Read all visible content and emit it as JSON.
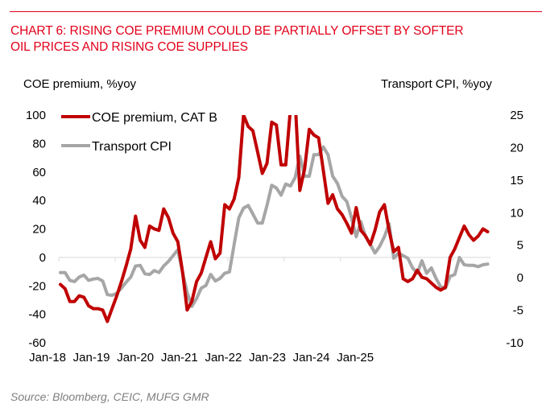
{
  "header": {
    "title_line1": "CHART 6: RISING COE PREMIUM COULD BE PARTIALLY OFFSET BY SOFTER",
    "title_line2": "OIL PRICES AND RISING COE SUPPLIES",
    "accent_color": "#e2001a"
  },
  "footer": {
    "source": "Source: Bloomberg, CEIC, MUFG GMR"
  },
  "chart_data": {
    "type": "line",
    "title": "CHART 6: RISING COE PREMIUM COULD BE PARTIALLY OFFSET BY SOFTER OIL PRICES AND RISING COE SUPPLIES",
    "xlabel": "",
    "ylabel_left": "COE premium, %yoy",
    "ylabel_right": "Transport CPI, %yoy",
    "x_start": "Jan-18",
    "x_frequency": "monthly",
    "x_tick_labels": [
      "Jan-18",
      "Jan-19",
      "Jan-20",
      "Jan-21",
      "Jan-22",
      "Jan-23",
      "Jan-24",
      "Jan-25"
    ],
    "y_left": {
      "lim": [
        -60,
        100
      ],
      "ticks": [
        100,
        80,
        60,
        40,
        20,
        0,
        -20,
        -40,
        -60
      ]
    },
    "y_right": {
      "lim": [
        -10,
        25
      ],
      "ticks": [
        25,
        20,
        15,
        10,
        5,
        0,
        -5,
        -10
      ]
    },
    "grid": false,
    "legend_position": "top-left",
    "series": [
      {
        "name": "COE premium, CAT B",
        "axis": "left",
        "color": "#c00000",
        "values": [
          -19,
          -22,
          -31,
          -31,
          -27,
          -28,
          -34,
          -36,
          -36,
          -37,
          -45,
          -36,
          -27,
          -17,
          -6,
          6,
          29,
          12,
          7,
          22,
          20,
          19,
          34,
          28,
          17,
          11,
          -10,
          -37,
          -31,
          -17,
          -11,
          0,
          11,
          -1,
          3,
          37,
          34,
          41,
          56,
          100,
          92,
          89,
          74,
          59,
          66,
          95,
          93,
          65,
          65,
          105,
          110,
          47,
          62,
          90,
          86,
          84,
          61,
          38,
          44,
          34,
          30,
          24,
          17,
          35,
          19,
          15,
          9,
          19,
          32,
          37,
          19,
          4,
          7,
          -15,
          -17,
          -15,
          -9,
          -14,
          -15,
          -18,
          -21,
          -23,
          -21,
          0,
          6,
          14,
          22,
          16,
          12,
          15,
          20,
          18
        ]
      },
      {
        "name": "Transport CPI",
        "axis": "right",
        "color": "#a6a6a6",
        "values": [
          0.8,
          0.8,
          -0.4,
          -0.6,
          0.1,
          0.4,
          -0.4,
          -0.2,
          -0.1,
          -0.5,
          -2.6,
          -2.7,
          -2.4,
          -1.6,
          -0.7,
          0.1,
          1.8,
          1.9,
          0.6,
          0.5,
          1.1,
          0.8,
          1.8,
          2.5,
          3.4,
          4.3,
          0.9,
          -2.3,
          -4.4,
          -3.2,
          -1.6,
          -1.2,
          0.5,
          -0.5,
          -0.1,
          0.7,
          0.9,
          5.1,
          9.2,
          10.7,
          11.1,
          9.8,
          8.4,
          8.4,
          11.1,
          14.2,
          13.8,
          12.7,
          14.4,
          14.1,
          15.4,
          18.7,
          15.6,
          15.6,
          18.9,
          18.9,
          20.1,
          18.9,
          15.6,
          14.5,
          12.5,
          11.7,
          9.2,
          6.3,
          8.6,
          6.3,
          5.1,
          3.8,
          4.8,
          6.3,
          8.3,
          3.0,
          3.8,
          3.4,
          3.0,
          1.5,
          0.7,
          2.6,
          0.7,
          1.5,
          -0.1,
          -1.4,
          -1.6,
          0.2,
          0.5,
          3.1,
          2.0,
          1.9,
          1.9,
          1.7,
          2.0,
          2.1
        ]
      }
    ]
  }
}
